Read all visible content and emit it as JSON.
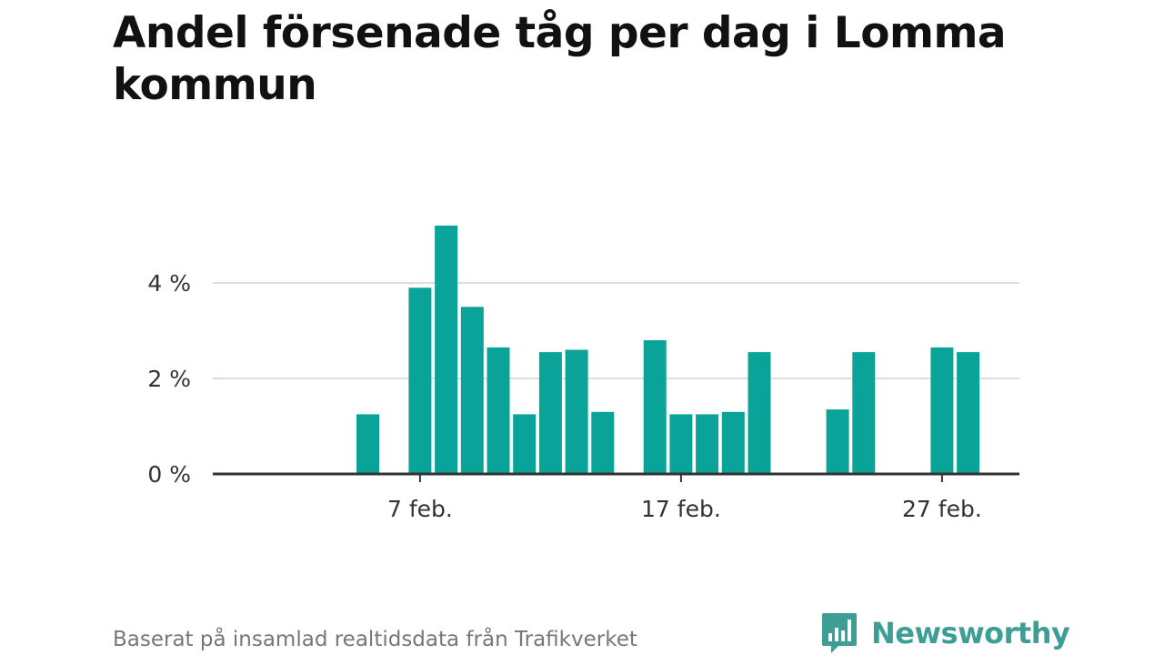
{
  "title": "Andel försenade tåg per dag i Lomma kommun",
  "source": "Baserat på insamlad realtidsdata från Trafikverket",
  "brand": {
    "name": "Newsworthy",
    "logo_icon": "bar-chart-speech-bubble-icon",
    "color": "#3d9e95"
  },
  "colors": {
    "bar": "#0aa39a",
    "grid": "#dddddd",
    "axis": "#333333"
  },
  "chart_data": {
    "type": "bar",
    "x_unit": "day of February",
    "x_domain": [
      1,
      29
    ],
    "x_ticks": [
      {
        "day": 7,
        "label": "7 feb."
      },
      {
        "day": 17,
        "label": "17 feb."
      },
      {
        "day": 27,
        "label": "27 feb."
      }
    ],
    "y_ticks": [
      {
        "value": 0,
        "label": "0 %"
      },
      {
        "value": 2,
        "label": "2 %"
      },
      {
        "value": 4,
        "label": "4 %"
      }
    ],
    "ylim": [
      0,
      5.2
    ],
    "grid": true,
    "legend": "none",
    "values": [
      {
        "day": 5,
        "value": 1.25
      },
      {
        "day": 7,
        "value": 3.9
      },
      {
        "day": 8,
        "value": 5.2
      },
      {
        "day": 9,
        "value": 3.5
      },
      {
        "day": 10,
        "value": 2.65
      },
      {
        "day": 11,
        "value": 1.25
      },
      {
        "day": 12,
        "value": 2.55
      },
      {
        "day": 13,
        "value": 2.6
      },
      {
        "day": 14,
        "value": 1.3
      },
      {
        "day": 16,
        "value": 2.8
      },
      {
        "day": 17,
        "value": 1.25
      },
      {
        "day": 18,
        "value": 1.25
      },
      {
        "day": 19,
        "value": 1.3
      },
      {
        "day": 20,
        "value": 2.55
      },
      {
        "day": 23,
        "value": 1.35
      },
      {
        "day": 24,
        "value": 2.55
      },
      {
        "day": 27,
        "value": 2.65
      },
      {
        "day": 28,
        "value": 2.55
      }
    ]
  }
}
